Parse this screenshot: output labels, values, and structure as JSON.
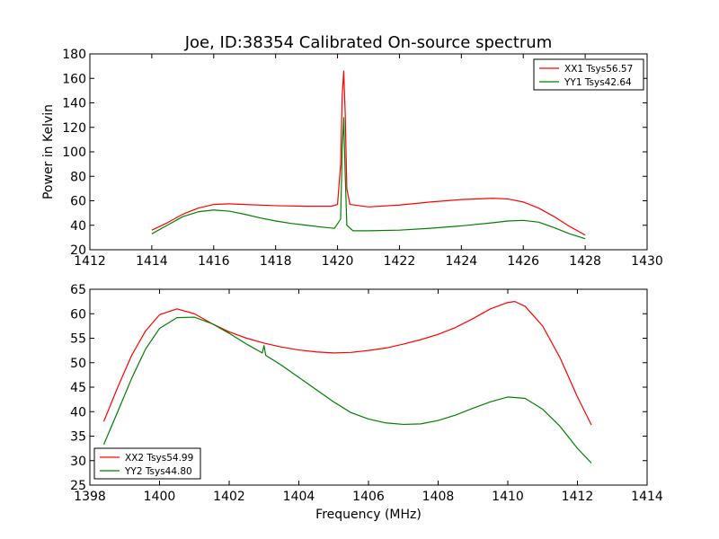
{
  "figure": {
    "title": "Joe, ID:38354 Calibrated On-source spectrum",
    "background": "#ffffff"
  },
  "chart_data": [
    {
      "type": "line",
      "xlabel": "",
      "ylabel": "Power in Kelvin",
      "xlim": [
        1412,
        1430
      ],
      "ylim": [
        20,
        180
      ],
      "xticks": [
        "1412",
        "1414",
        "1416",
        "1418",
        "1420",
        "1422",
        "1424",
        "1426",
        "1428",
        "1430"
      ],
      "yticks": [
        "20",
        "40",
        "60",
        "80",
        "100",
        "120",
        "140",
        "160",
        "180"
      ],
      "grid": false,
      "legend": "top-right",
      "series": [
        {
          "name": "XX1 Tsys56.57",
          "color": "#ff0000",
          "x": [
            1414.0,
            1414.5,
            1415.0,
            1415.5,
            1416.0,
            1416.5,
            1417.0,
            1418.0,
            1419.0,
            1419.8,
            1420.0,
            1420.1,
            1420.15,
            1420.2,
            1420.25,
            1420.3,
            1420.4,
            1421.0,
            1422.0,
            1423.0,
            1424.0,
            1425.0,
            1425.5,
            1426.0,
            1426.5,
            1427.0,
            1427.5,
            1428.0
          ],
          "y": [
            36,
            42,
            49,
            54,
            57,
            57.5,
            57,
            56,
            55.5,
            55.5,
            57,
            90,
            145,
            166,
            130,
            70,
            57,
            55,
            56.5,
            59,
            61,
            62,
            61.5,
            59,
            54,
            47,
            39,
            32
          ]
        },
        {
          "name": "YY1 Tsys42.64",
          "color": "#008000",
          "x": [
            1414.0,
            1414.5,
            1415.0,
            1415.5,
            1416.0,
            1416.5,
            1417.0,
            1417.5,
            1418.0,
            1418.5,
            1419.0,
            1419.5,
            1419.9,
            1420.1,
            1420.15,
            1420.2,
            1420.25,
            1420.3,
            1420.5,
            1421.0,
            1422.0,
            1423.0,
            1424.0,
            1425.0,
            1425.5,
            1426.0,
            1426.5,
            1427.0,
            1427.5,
            1428.0
          ],
          "y": [
            33,
            40,
            47,
            51,
            52.5,
            51.5,
            49,
            46,
            43.5,
            41.5,
            40,
            38.5,
            37.5,
            45,
            100,
            128,
            80,
            40,
            35.5,
            35.5,
            36,
            37.5,
            39.5,
            42,
            43.5,
            44,
            42.5,
            38,
            33,
            29
          ]
        }
      ]
    },
    {
      "type": "line",
      "xlabel": "Frequency (MHz)",
      "ylabel": "",
      "xlim": [
        1398,
        1414
      ],
      "ylim": [
        25,
        65
      ],
      "xticks": [
        "1398",
        "1400",
        "1402",
        "1404",
        "1406",
        "1408",
        "1410",
        "1412",
        "1414"
      ],
      "yticks": [
        "25",
        "30",
        "35",
        "40",
        "45",
        "50",
        "55",
        "60",
        "65"
      ],
      "grid": false,
      "legend": "bottom-left",
      "series": [
        {
          "name": "XX2 Tsys54.99",
          "color": "#ff0000",
          "x": [
            1398.4,
            1398.8,
            1399.2,
            1399.6,
            1400.0,
            1400.5,
            1401.0,
            1401.5,
            1402.0,
            1402.5,
            1403.0,
            1403.5,
            1404.0,
            1404.5,
            1405.0,
            1405.5,
            1406.0,
            1406.5,
            1407.0,
            1407.5,
            1408.0,
            1408.5,
            1409.0,
            1409.5,
            1410.0,
            1410.2,
            1410.5,
            1411.0,
            1411.5,
            1412.0,
            1412.4
          ],
          "y": [
            38,
            45,
            51.5,
            56.5,
            59.8,
            61,
            60,
            58,
            56.3,
            55,
            54,
            53.2,
            52.6,
            52.2,
            52,
            52.1,
            52.5,
            53,
            53.8,
            54.7,
            55.8,
            57.2,
            59,
            61,
            62.3,
            62.5,
            61.5,
            57.5,
            51,
            43,
            37.3
          ]
        },
        {
          "name": "YY2 Tsys44.80",
          "color": "#008000",
          "x": [
            1398.4,
            1398.8,
            1399.2,
            1399.6,
            1400.0,
            1400.5,
            1401.0,
            1401.5,
            1402.0,
            1402.5,
            1402.95,
            1403.0,
            1403.05,
            1403.5,
            1404.0,
            1404.5,
            1405.0,
            1405.5,
            1406.0,
            1406.5,
            1407.0,
            1407.5,
            1408.0,
            1408.5,
            1409.0,
            1409.5,
            1410.0,
            1410.5,
            1411.0,
            1411.5,
            1412.0,
            1412.4
          ],
          "y": [
            33.3,
            40,
            46.8,
            52.8,
            57,
            59.2,
            59.3,
            58,
            56,
            53.8,
            52,
            53.5,
            51.5,
            49.5,
            47,
            44.5,
            42,
            39.8,
            38.5,
            37.7,
            37.4,
            37.5,
            38.2,
            39.3,
            40.7,
            42,
            43,
            42.7,
            40.5,
            37,
            32.5,
            29.5
          ]
        }
      ]
    }
  ]
}
